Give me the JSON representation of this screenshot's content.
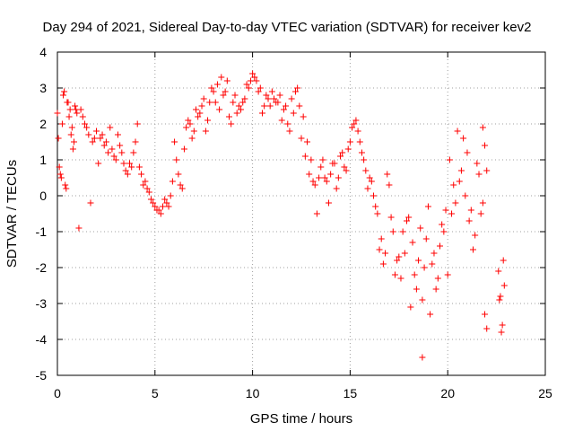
{
  "chart_data": {
    "type": "scatter",
    "title": "Day 294 of 2021, Sidereal Day-to-day VTEC variation (SDTVAR) for receiver kev2",
    "xlabel": "GPS time / hours",
    "ylabel": "SDTVAR / TECUs",
    "xlim": [
      0,
      25
    ],
    "ylim": [
      -5,
      4
    ],
    "xticks": [
      0,
      5,
      10,
      15,
      20,
      25
    ],
    "yticks": [
      -5,
      -4,
      -3,
      -2,
      -1,
      0,
      1,
      2,
      3,
      4
    ],
    "grid": true,
    "marker": "+",
    "color": "#ff0000",
    "series": [
      {
        "name": "SDTVAR",
        "x": [
          0.0,
          0.1,
          0.2,
          0.3,
          0.4,
          0.5,
          0.6,
          0.7,
          0.8,
          0.9,
          1.0,
          1.2,
          1.4,
          1.6,
          1.8,
          2.0,
          2.2,
          2.4,
          2.6,
          2.8,
          3.0,
          3.2,
          3.4,
          3.6,
          3.8,
          4.0,
          4.2,
          4.4,
          4.6,
          4.8,
          5.0,
          5.2,
          5.4,
          5.6,
          5.8,
          6.0,
          6.2,
          6.4,
          6.6,
          6.8,
          7.0,
          7.2,
          7.4,
          7.6,
          7.8,
          8.0,
          8.2,
          8.4,
          8.6,
          8.8,
          9.0,
          9.2,
          9.4,
          9.6,
          9.8,
          10.0,
          10.2,
          10.4,
          10.6,
          10.8,
          11.0,
          11.2,
          11.4,
          11.6,
          11.8,
          12.0,
          12.2,
          12.4,
          12.6,
          12.8,
          13.0,
          13.2,
          13.4,
          13.6,
          13.8,
          14.0,
          14.2,
          14.4,
          14.6,
          14.8,
          15.0,
          15.2,
          15.4,
          15.6,
          15.8,
          16.0,
          16.2,
          16.4,
          16.6,
          16.8,
          17.0,
          17.2,
          17.4,
          17.6,
          17.8,
          18.0,
          18.2,
          18.4,
          18.6,
          18.8,
          19.0,
          19.2,
          19.4,
          19.6,
          19.8,
          20.0,
          20.2,
          20.4,
          20.6,
          20.8,
          21.0,
          21.2,
          21.4,
          21.6,
          21.8,
          22.0,
          22.6,
          22.7,
          22.8,
          22.9,
          0.05,
          0.15,
          0.25,
          0.35,
          0.45,
          0.55,
          0.65,
          0.75,
          0.85,
          0.95,
          1.1,
          1.3,
          1.5,
          1.7,
          1.9,
          2.1,
          2.3,
          2.5,
          2.7,
          2.9,
          3.1,
          3.3,
          3.5,
          3.7,
          3.9,
          4.1,
          4.3,
          4.5,
          4.7,
          4.9,
          5.1,
          5.3,
          5.5,
          5.7,
          5.9,
          6.1,
          6.3,
          6.5,
          6.7,
          6.9,
          7.1,
          7.3,
          7.5,
          7.7,
          7.9,
          8.1,
          8.3,
          8.5,
          8.7,
          8.9,
          9.1,
          9.3,
          9.5,
          9.7,
          9.9,
          10.1,
          10.3,
          10.5,
          10.7,
          10.9,
          11.1,
          11.3,
          11.5,
          11.7,
          11.9,
          12.1,
          12.3,
          12.5,
          12.7,
          12.9,
          13.1,
          13.3,
          13.5,
          13.7,
          13.9,
          14.1,
          14.3,
          14.5,
          14.7,
          14.9,
          15.1,
          15.3,
          15.5,
          15.7,
          15.9,
          16.1,
          16.3,
          16.5,
          16.7,
          16.9,
          17.1,
          17.3,
          17.5,
          17.7,
          17.9,
          18.1,
          18.3,
          18.5,
          18.7,
          18.9,
          19.1,
          19.3,
          19.5,
          19.7,
          19.9,
          20.1,
          20.3,
          20.5,
          20.7,
          20.9,
          21.1,
          21.3,
          21.5,
          21.7,
          21.9,
          22.65,
          22.75,
          22.85,
          18.7,
          21.8,
          21.9,
          22.0
        ],
        "y": [
          2.3,
          0.8,
          0.5,
          2.8,
          0.3,
          2.6,
          2.2,
          1.7,
          1.3,
          2.5,
          2.3,
          2.4,
          2.0,
          1.7,
          1.5,
          1.8,
          1.6,
          1.4,
          1.2,
          1.3,
          1.0,
          1.4,
          0.9,
          0.6,
          0.8,
          1.5,
          0.8,
          0.3,
          0.2,
          -0.1,
          -0.3,
          -0.4,
          -0.3,
          -0.2,
          0.0,
          1.5,
          0.6,
          0.2,
          1.9,
          2.0,
          1.8,
          2.2,
          2.5,
          1.8,
          2.6,
          2.9,
          3.1,
          3.3,
          2.9,
          2.2,
          2.6,
          2.3,
          2.4,
          2.7,
          3.0,
          3.4,
          3.2,
          3.0,
          2.5,
          2.7,
          2.9,
          2.6,
          2.8,
          2.4,
          2.0,
          2.7,
          2.9,
          2.5,
          2.2,
          1.5,
          1.0,
          0.3,
          0.5,
          1.0,
          0.4,
          0.6,
          0.9,
          0.5,
          1.2,
          0.7,
          1.5,
          2.0,
          1.8,
          1.2,
          0.7,
          0.5,
          0.0,
          -0.5,
          -1.2,
          -1.6,
          0.3,
          -1.0,
          -1.8,
          -2.3,
          -1.6,
          -0.6,
          -1.3,
          -2.6,
          -0.9,
          -2.0,
          -0.3,
          -1.9,
          -2.6,
          -1.4,
          -1.0,
          -2.2,
          -0.5,
          -0.2,
          0.4,
          1.6,
          1.2,
          -0.4,
          -1.1,
          0.6,
          -0.2,
          0.7,
          -2.1,
          -2.8,
          -3.6,
          -2.5,
          1.6,
          0.6,
          2.0,
          2.9,
          0.2,
          2.6,
          2.4,
          1.9,
          1.5,
          2.4,
          -0.9,
          2.2,
          1.9,
          -0.2,
          1.6,
          0.9,
          1.7,
          1.5,
          1.9,
          1.1,
          1.7,
          1.2,
          0.7,
          0.9,
          1.2,
          2.0,
          0.6,
          0.4,
          0.1,
          -0.2,
          -0.4,
          -0.5,
          -0.1,
          -0.3,
          0.4,
          1.0,
          0.3,
          1.3,
          2.1,
          1.6,
          2.4,
          2.3,
          2.7,
          2.1,
          3.0,
          2.6,
          2.4,
          2.8,
          3.2,
          2.0,
          2.8,
          2.5,
          2.6,
          3.1,
          3.2,
          3.3,
          2.9,
          2.3,
          2.8,
          2.5,
          2.7,
          2.6,
          2.1,
          2.5,
          1.8,
          2.3,
          3.0,
          1.6,
          1.1,
          0.6,
          0.4,
          -0.5,
          0.8,
          0.5,
          -0.2,
          0.9,
          0.2,
          1.1,
          0.8,
          1.3,
          1.9,
          2.1,
          1.5,
          1.0,
          0.2,
          0.4,
          -0.3,
          -1.5,
          -1.9,
          0.6,
          -0.6,
          -2.2,
          -1.7,
          -1.0,
          -0.7,
          -3.1,
          -2.2,
          -1.8,
          -2.9,
          -1.2,
          -3.3,
          -1.6,
          -2.3,
          -0.8,
          -0.4,
          1.0,
          0.3,
          1.8,
          0.7,
          0.0,
          -0.7,
          -1.5,
          0.9,
          -0.5,
          1.4,
          -2.9,
          -3.8,
          -1.8,
          -4.5,
          1.9,
          -3.3,
          -3.7
        ]
      }
    ]
  }
}
